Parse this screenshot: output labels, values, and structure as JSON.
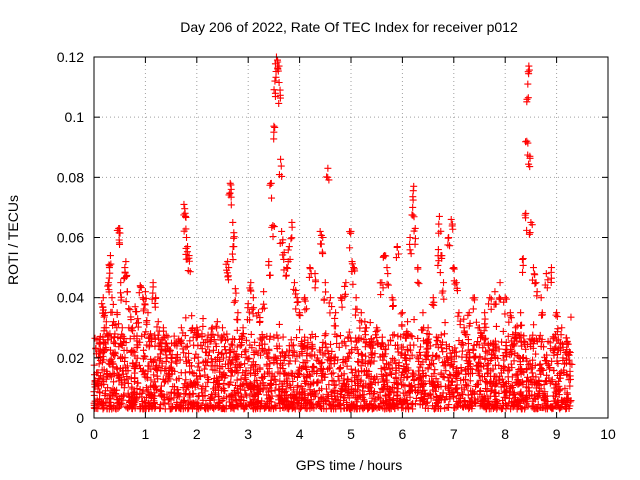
{
  "chart_data": {
    "type": "scatter",
    "title": "Day 206 of 2022, Rate Of TEC Index for receiver p012",
    "xlabel": "GPS time / hours",
    "ylabel": "ROTI / TECUs",
    "xlim": [
      0,
      10
    ],
    "ylim": [
      0,
      0.12
    ],
    "xticks": [
      0,
      1,
      2,
      3,
      4,
      5,
      6,
      7,
      8,
      9,
      10
    ],
    "xtick_labels": [
      "0",
      "1",
      "2",
      "3",
      "4",
      "5",
      "6",
      "7",
      "8",
      "9",
      "10"
    ],
    "yticks": [
      0,
      0.02,
      0.04,
      0.06,
      0.08,
      0.1,
      0.12
    ],
    "ytick_labels": [
      "0",
      "0.02",
      "0.04",
      "0.06",
      "0.08",
      "0.1",
      "0.12"
    ],
    "grid": true,
    "marker": "+",
    "marker_color": "#ff0000",
    "series": [
      {
        "name": "ROTI",
        "points": [
          [
            0.02,
            0.012
          ],
          [
            0.05,
            0.015
          ],
          [
            0.08,
            0.011
          ],
          [
            0.1,
            0.018
          ],
          [
            0.12,
            0.025
          ],
          [
            0.15,
            0.038
          ],
          [
            0.18,
            0.04
          ],
          [
            0.2,
            0.03
          ],
          [
            0.22,
            0.035
          ],
          [
            0.25,
            0.028
          ],
          [
            0.28,
            0.045
          ],
          [
            0.3,
            0.05
          ],
          [
            0.32,
            0.054
          ],
          [
            0.35,
            0.04
          ],
          [
            0.38,
            0.032
          ],
          [
            0.4,
            0.027
          ],
          [
            0.45,
            0.035
          ],
          [
            0.48,
            0.063
          ],
          [
            0.5,
            0.063
          ],
          [
            0.52,
            0.045
          ],
          [
            0.55,
            0.03
          ],
          [
            0.6,
            0.05
          ],
          [
            0.62,
            0.052
          ],
          [
            0.65,
            0.042
          ],
          [
            0.7,
            0.036
          ],
          [
            0.75,
            0.03
          ],
          [
            0.8,
            0.037
          ],
          [
            0.85,
            0.033
          ],
          [
            0.9,
            0.044
          ],
          [
            0.95,
            0.04
          ],
          [
            1.0,
            0.042
          ],
          [
            1.05,
            0.035
          ],
          [
            1.1,
            0.028
          ],
          [
            1.15,
            0.045
          ],
          [
            1.2,
            0.04
          ],
          [
            1.25,
            0.032
          ],
          [
            1.3,
            0.025
          ],
          [
            1.35,
            0.03
          ],
          [
            1.4,
            0.022
          ],
          [
            1.5,
            0.02
          ],
          [
            1.6,
            0.025
          ],
          [
            1.7,
            0.03
          ],
          [
            1.75,
            0.071
          ],
          [
            1.78,
            0.067
          ],
          [
            1.8,
            0.06
          ],
          [
            1.82,
            0.057
          ],
          [
            1.85,
            0.054
          ],
          [
            1.9,
            0.034
          ],
          [
            2.0,
            0.03
          ],
          [
            2.1,
            0.028
          ],
          [
            2.2,
            0.026
          ],
          [
            2.3,
            0.03
          ],
          [
            2.4,
            0.032
          ],
          [
            2.5,
            0.03
          ],
          [
            2.6,
            0.052
          ],
          [
            2.62,
            0.05
          ],
          [
            2.65,
            0.078
          ],
          [
            2.67,
            0.076
          ],
          [
            2.7,
            0.065
          ],
          [
            2.72,
            0.057
          ],
          [
            2.75,
            0.043
          ],
          [
            2.8,
            0.035
          ],
          [
            2.9,
            0.03
          ],
          [
            3.0,
            0.038
          ],
          [
            3.05,
            0.045
          ],
          [
            3.1,
            0.04
          ],
          [
            3.2,
            0.035
          ],
          [
            3.3,
            0.042
          ],
          [
            3.4,
            0.052
          ],
          [
            3.45,
            0.078
          ],
          [
            3.48,
            0.064
          ],
          [
            3.5,
            0.097
          ],
          [
            3.52,
            0.112
          ],
          [
            3.55,
            0.12
          ],
          [
            3.57,
            0.119
          ],
          [
            3.6,
            0.117
          ],
          [
            3.62,
            0.109
          ],
          [
            3.63,
            0.086
          ],
          [
            3.65,
            0.062
          ],
          [
            3.7,
            0.055
          ],
          [
            3.75,
            0.05
          ],
          [
            3.8,
            0.057
          ],
          [
            3.85,
            0.065
          ],
          [
            3.9,
            0.045
          ],
          [
            3.95,
            0.04
          ],
          [
            4.0,
            0.035
          ],
          [
            4.1,
            0.04
          ],
          [
            4.2,
            0.05
          ],
          [
            4.3,
            0.048
          ],
          [
            4.4,
            0.062
          ],
          [
            4.45,
            0.06
          ],
          [
            4.5,
            0.045
          ],
          [
            4.55,
            0.083
          ],
          [
            4.6,
            0.04
          ],
          [
            4.7,
            0.035
          ],
          [
            4.8,
            0.04
          ],
          [
            4.9,
            0.045
          ],
          [
            5.0,
            0.062
          ],
          [
            5.02,
            0.052
          ],
          [
            5.05,
            0.05
          ],
          [
            5.1,
            0.04
          ],
          [
            5.2,
            0.035
          ],
          [
            5.3,
            0.03
          ],
          [
            5.4,
            0.025
          ],
          [
            5.5,
            0.03
          ],
          [
            5.6,
            0.045
          ],
          [
            5.65,
            0.054
          ],
          [
            5.7,
            0.05
          ],
          [
            5.8,
            0.04
          ],
          [
            5.9,
            0.057
          ],
          [
            6.0,
            0.035
          ],
          [
            6.1,
            0.032
          ],
          [
            6.15,
            0.06
          ],
          [
            6.2,
            0.07
          ],
          [
            6.22,
            0.077
          ],
          [
            6.25,
            0.063
          ],
          [
            6.3,
            0.05
          ],
          [
            6.4,
            0.035
          ],
          [
            6.5,
            0.03
          ],
          [
            6.6,
            0.04
          ],
          [
            6.7,
            0.056
          ],
          [
            6.72,
            0.067
          ],
          [
            6.75,
            0.054
          ],
          [
            6.8,
            0.045
          ],
          [
            6.9,
            0.06
          ],
          [
            6.95,
            0.066
          ],
          [
            7.0,
            0.05
          ],
          [
            7.05,
            0.045
          ],
          [
            7.1,
            0.035
          ],
          [
            7.2,
            0.03
          ],
          [
            7.3,
            0.035
          ],
          [
            7.4,
            0.04
          ],
          [
            7.5,
            0.03
          ],
          [
            7.6,
            0.035
          ],
          [
            7.7,
            0.04
          ],
          [
            7.8,
            0.042
          ],
          [
            7.9,
            0.045
          ],
          [
            8.0,
            0.04
          ],
          [
            8.1,
            0.035
          ],
          [
            8.2,
            0.03
          ],
          [
            8.3,
            0.035
          ],
          [
            8.35,
            0.053
          ],
          [
            8.4,
            0.068
          ],
          [
            8.42,
            0.092
          ],
          [
            8.44,
            0.111
          ],
          [
            8.46,
            0.117
          ],
          [
            8.48,
            0.087
          ],
          [
            8.5,
            0.065
          ],
          [
            8.55,
            0.05
          ],
          [
            8.6,
            0.045
          ],
          [
            8.7,
            0.04
          ],
          [
            8.8,
            0.048
          ],
          [
            8.9,
            0.05
          ],
          [
            9.0,
            0.035
          ],
          [
            9.1,
            0.03
          ],
          [
            9.2,
            0.025
          ],
          [
            9.25,
            0.022
          ]
        ],
        "density_band": {
          "x_start": 0.0,
          "x_end": 9.3,
          "y_low": 0.003,
          "y_high": 0.028,
          "count": 2600
        }
      }
    ]
  }
}
